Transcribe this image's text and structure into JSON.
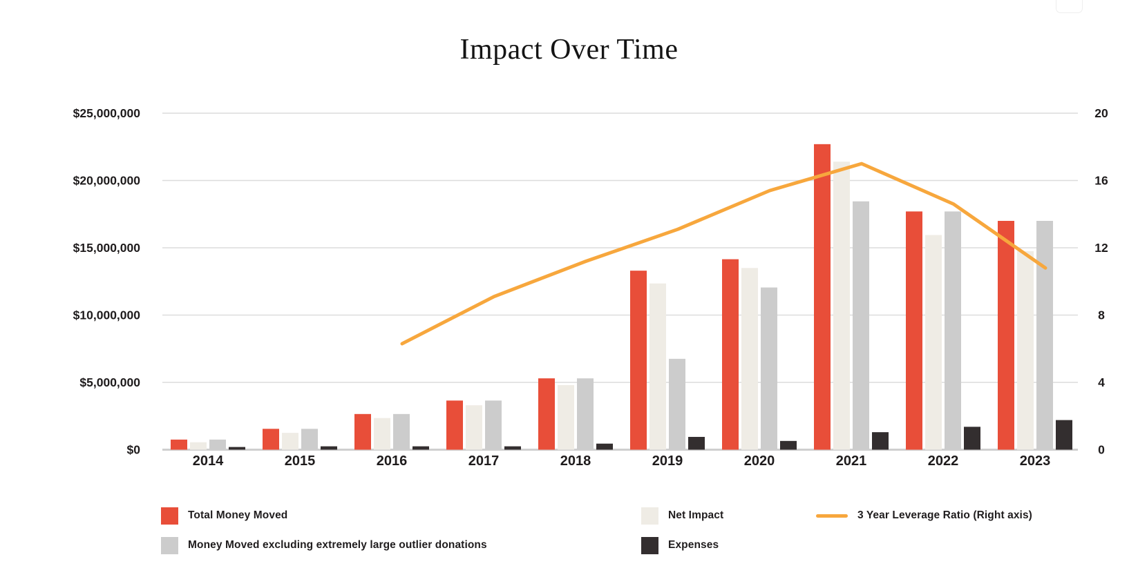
{
  "title": "Impact Over Time",
  "chart_data": {
    "type": "bar",
    "subtype": "grouped-bars-with-line-overlay",
    "title": "Impact Over Time",
    "categories": [
      "2014",
      "2015",
      "2016",
      "2017",
      "2018",
      "2019",
      "2020",
      "2021",
      "2022",
      "2023"
    ],
    "series": [
      {
        "name": "Total Money Moved",
        "type": "bar",
        "axis": "left",
        "color": "#E84E39",
        "values": [
          750000,
          1550000,
          2650000,
          3650000,
          5300000,
          13300000,
          14150000,
          22700000,
          17700000,
          17000000
        ]
      },
      {
        "name": "Net Impact",
        "type": "bar",
        "axis": "left",
        "color": "#EFECE5",
        "values": [
          550000,
          1250000,
          2350000,
          3300000,
          4800000,
          12350000,
          13500000,
          21400000,
          15950000,
          14750000
        ]
      },
      {
        "name": "Money Moved excluding extremely large outlier donations",
        "type": "bar",
        "axis": "left",
        "color": "#CCCCCC",
        "values": [
          750000,
          1550000,
          2650000,
          3650000,
          5300000,
          6750000,
          12050000,
          18450000,
          17700000,
          17000000
        ]
      },
      {
        "name": "Expenses",
        "type": "bar",
        "axis": "left",
        "color": "#332E2F",
        "values": [
          200000,
          250000,
          250000,
          250000,
          450000,
          950000,
          650000,
          1300000,
          1700000,
          2200000
        ]
      },
      {
        "name": "3 Year Leverage Ratio (Right axis)",
        "type": "line",
        "axis": "right",
        "color": "#F7A73D",
        "values": [
          null,
          null,
          6.3,
          9.1,
          11.2,
          13.1,
          15.4,
          17.0,
          14.6,
          10.8
        ]
      }
    ],
    "left_axis": {
      "min": 0,
      "max": 25000000,
      "ticks": [
        {
          "label": "$0",
          "value": 0
        },
        {
          "label": "$5,000,000",
          "value": 5000000
        },
        {
          "label": "$10,000,000",
          "value": 10000000
        },
        {
          "label": "$15,000,000",
          "value": 15000000
        },
        {
          "label": "$20,000,000",
          "value": 20000000
        },
        {
          "label": "$25,000,000",
          "value": 25000000
        }
      ]
    },
    "right_axis": {
      "min": 0,
      "max": 20,
      "ticks": [
        {
          "label": "0",
          "value": 0
        },
        {
          "label": "4",
          "value": 4
        },
        {
          "label": "8",
          "value": 8
        },
        {
          "label": "12",
          "value": 12
        },
        {
          "label": "16",
          "value": 16
        },
        {
          "label": "20",
          "value": 20
        }
      ]
    },
    "grid": true,
    "legend_position": "bottom"
  },
  "legend": {
    "items": [
      {
        "label": "Total Money Moved",
        "swatch": "square",
        "color": "#E84E39"
      },
      {
        "label": "Money Moved excluding extremely large outlier donations",
        "swatch": "square",
        "color": "#CCCCCC"
      },
      {
        "label": "Net Impact",
        "swatch": "square",
        "color": "#EFECE5"
      },
      {
        "label": "Expenses",
        "swatch": "square",
        "color": "#332E2F"
      },
      {
        "label": "3 Year Leverage Ratio (Right axis)",
        "swatch": "line",
        "color": "#F7A73D"
      }
    ]
  },
  "colors": {
    "gridline": "#DCDCDC",
    "baseline": "#CFCFCF",
    "axis_text": "#1E1B1C"
  }
}
